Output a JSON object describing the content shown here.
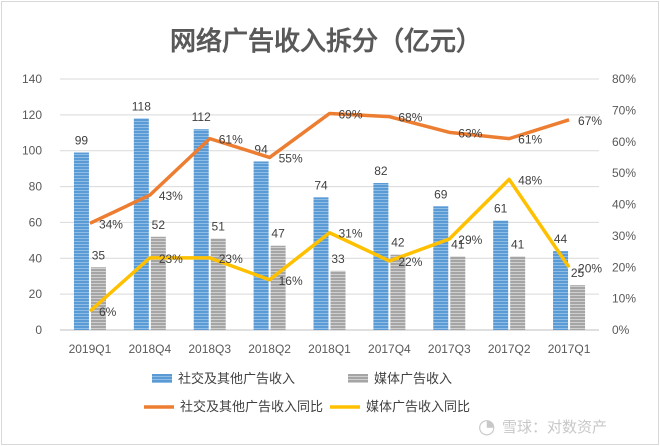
{
  "chart_data": {
    "type": "bar",
    "title": "网络广告收入拆分（亿元）",
    "categories": [
      "2019Q1",
      "2018Q4",
      "2018Q3",
      "2018Q2",
      "2018Q1",
      "2017Q4",
      "2017Q3",
      "2017Q2",
      "2017Q1"
    ],
    "bar_series": [
      {
        "name": "社交及其他广告收入",
        "values": [
          99,
          118,
          112,
          94,
          74,
          82,
          69,
          61,
          44
        ],
        "color": "#5b9bd5"
      },
      {
        "name": "媒体广告收入",
        "values": [
          35,
          52,
          51,
          47,
          33,
          42,
          41,
          41,
          25
        ],
        "color": "#a5a5a5"
      }
    ],
    "line_series": [
      {
        "name": "社交及其他广告收入同比",
        "values": [
          34,
          43,
          61,
          55,
          69,
          68,
          63,
          61,
          67
        ],
        "labels": [
          "34%",
          "43%",
          "61%",
          "55%",
          "69%",
          "68%",
          "63%",
          "61%",
          "67%"
        ],
        "color": "#ed7d31"
      },
      {
        "name": "媒体广告收入同比",
        "values": [
          6,
          23,
          23,
          16,
          31,
          22,
          29,
          48,
          20
        ],
        "labels": [
          "6%",
          "23%",
          "23%",
          "16%",
          "31%",
          "22%",
          "29%",
          "48%",
          "20%"
        ],
        "color": "#ffc000"
      }
    ],
    "y_left": {
      "min": 0,
      "max": 140,
      "ticks": [
        0,
        20,
        40,
        60,
        80,
        100,
        120,
        140
      ]
    },
    "y_right": {
      "min": 0,
      "max": 80,
      "ticks": [
        "0%",
        "10%",
        "20%",
        "30%",
        "40%",
        "50%",
        "60%",
        "70%",
        "80%"
      ]
    },
    "grid": true,
    "legend_position": "bottom"
  },
  "watermark": "雪球：对数资产"
}
